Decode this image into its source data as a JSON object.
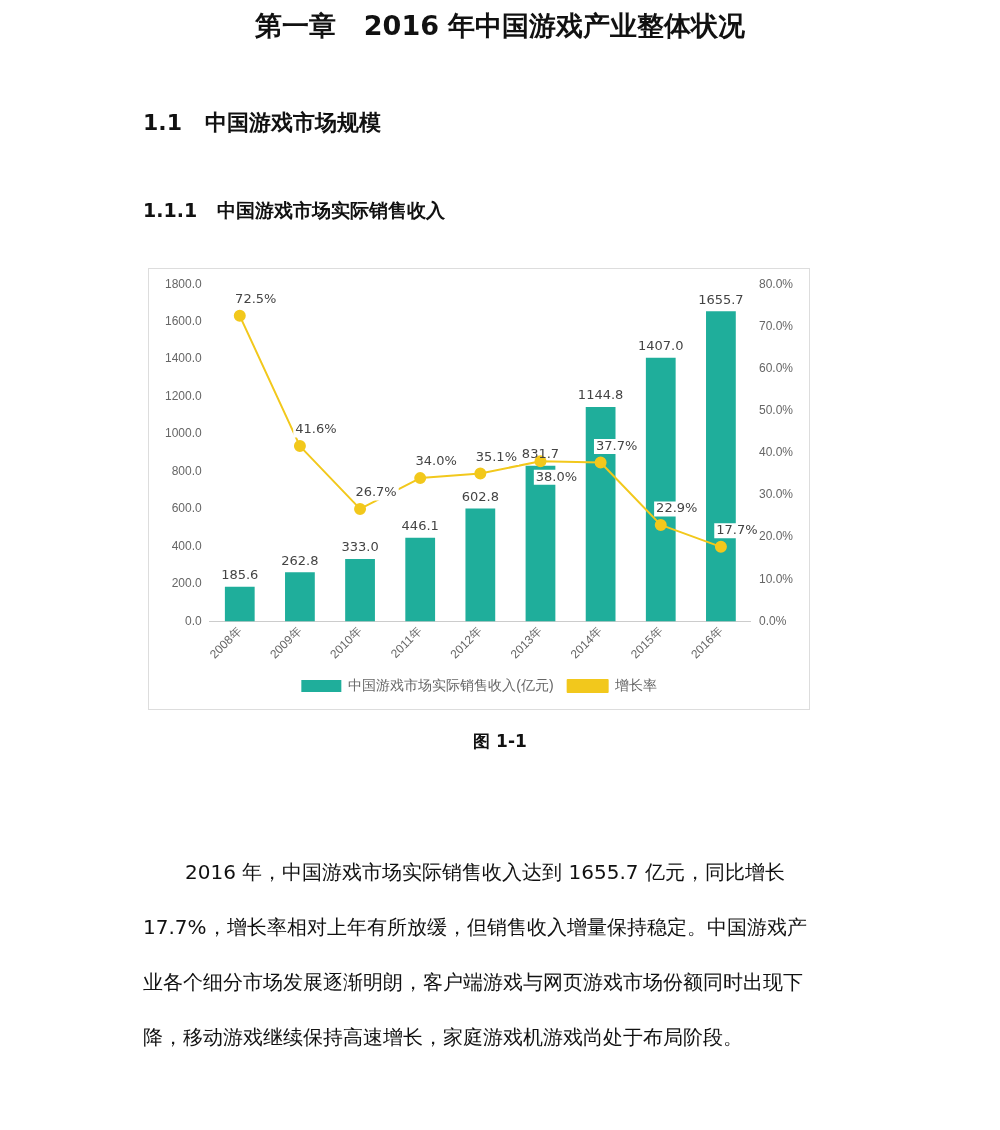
{
  "chart_data": {
    "type": "bar",
    "title": "第一章   2016 年中国游戏产业整体状况",
    "subtitle": "1.1   中国游戏市场规模",
    "annotations": [
      "1.1.1   中国游戏市场实际销售收入",
      "图 1-1",
      "2016 年，中国游戏市场实际销售收入达到 1655.7 亿元，同比增长 17.7%，增长率相对上年有所放缓，但销售收入增量保持稳定。中国游戏产业各个细分市场发展逐渐明朗，客户端游戏与网页游戏市场份额同时出现下降，移动游戏继续保持高速增长，家庭游戏机游戏尚处于布局阶段。"
    ],
    "categories": [
      "2008年",
      "2009年",
      "2010年",
      "2011年",
      "2012年",
      "2013年",
      "2014年",
      "2015年",
      "2016年"
    ],
    "series": [
      {
        "name": "中国游戏市场实际销售收入(亿元)",
        "color": "#1fae9b",
        "values": [
          185.6,
          262.8,
          333.0,
          446.1,
          602.8,
          831.7,
          1144.8,
          1407.0,
          1655.7
        ],
        "value_labels": [
          "185.6",
          "262.8",
          "333.0",
          "446.1",
          "602.8",
          "831.7",
          "1144.8",
          "1407.0",
          "1655.7"
        ]
      },
      {
        "name": "增长率",
        "type": "line",
        "axis": "y2",
        "color": "#f2c81c",
        "marker": "circle",
        "values": [
          72.5,
          41.6,
          26.7,
          34.0,
          35.1,
          38.0,
          37.7,
          22.9,
          17.7
        ],
        "value_labels": [
          "72.5%",
          "41.6%",
          "26.7%",
          "34.0%",
          "35.1%",
          "38.0%",
          "37.7%",
          "22.9%",
          "17.7%"
        ]
      }
    ],
    "ylim": [
      0,
      1800
    ],
    "yticks": [
      {
        "value": 0,
        "label": "0.0"
      },
      {
        "value": 200,
        "label": "200.0"
      },
      {
        "value": 400,
        "label": "400.0"
      },
      {
        "value": 600,
        "label": "600.0"
      },
      {
        "value": 800,
        "label": "800.0"
      },
      {
        "value": 1000,
        "label": "1000.0"
      },
      {
        "value": 1200,
        "label": "1200.0"
      },
      {
        "value": 1400,
        "label": "1400.0"
      },
      {
        "value": 1600,
        "label": "1600.0"
      },
      {
        "value": 1800,
        "label": "1800.0"
      }
    ],
    "y2lim": [
      0,
      80
    ],
    "y2ticks": [
      {
        "value": 0,
        "label": "0.0%"
      },
      {
        "value": 10,
        "label": "10.0%"
      },
      {
        "value": 20,
        "label": "20.0%"
      },
      {
        "value": 30,
        "label": "30.0%"
      },
      {
        "value": 40,
        "label": "40.0%"
      },
      {
        "value": 50,
        "label": "50.0%"
      },
      {
        "value": 60,
        "label": "60.0%"
      },
      {
        "value": 70,
        "label": "70.0%"
      },
      {
        "value": 80,
        "label": "80.0%"
      }
    ],
    "grid": false,
    "legend": "bottom"
  }
}
